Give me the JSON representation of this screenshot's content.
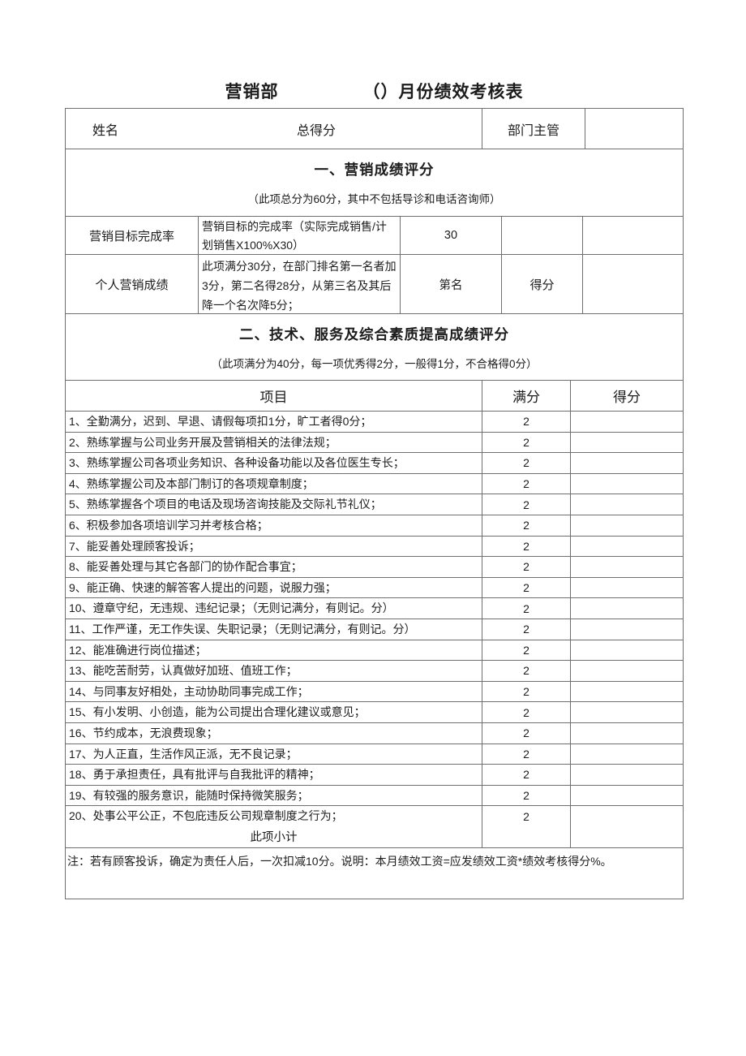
{
  "title": {
    "dept": "营销部",
    "main": "（）月份绩效考核表"
  },
  "header_row": {
    "name_label": "姓名",
    "total_label": "总得分",
    "supervisor_label": "部门主管",
    "supervisor_value": ""
  },
  "section1": {
    "heading": "一、营销成绩评分",
    "subtitle": "（此项总分为60分，其中不包括导诊和电话咨询师）",
    "rows": [
      {
        "label": "营销目标完成率",
        "desc": "营销目标的完成率（实际完成销售/计划销售X100%X30）",
        "value": "30",
        "col4": "",
        "col5": ""
      },
      {
        "label": "个人营销成绩",
        "desc": "此项满分30分，在部门排名第一名者加3分，第二名得28分，从第三名及其后降一个名次降5分；",
        "value": "第名",
        "col4": "得分",
        "col5": ""
      }
    ]
  },
  "section2": {
    "heading": "二、技术、服务及综合素质提高成绩评分",
    "subtitle": "（此项满分为40分，每一项优秀得2分，一般得1分，不合格得0分）",
    "columns": {
      "item": "项目",
      "max": "满分",
      "score": "得分"
    },
    "items": [
      {
        "text": "1、全勤满分，迟到、早退、请假每项扣1分，旷工者得0分；",
        "max": "2",
        "score": ""
      },
      {
        "text": "2、熟练掌握与公司业务开展及营销相关的法律法规；",
        "max": "2",
        "score": ""
      },
      {
        "text": "3、熟练掌握公司各项业务知识、各种设备功能以及各位医生专长；",
        "max": "2",
        "score": ""
      },
      {
        "text": "4、熟练掌握公司及本部门制订的各项规章制度；",
        "max": "2",
        "score": ""
      },
      {
        "text": "5、熟练掌握各个项目的电话及现场咨询技能及交际礼节礼仪；",
        "max": "2",
        "score": ""
      },
      {
        "text": "6、积极参加各项培训学习并考核合格；",
        "max": "2",
        "score": ""
      },
      {
        "text": "7、能妥善处理顾客投诉；",
        "max": "2",
        "score": ""
      },
      {
        "text": "8、能妥善处理与其它各部门的协作配合事宜；",
        "max": "2",
        "score": ""
      },
      {
        "text": "9、能正确、快速的解答客人提出的问题，说服力强；",
        "max": "2",
        "score": ""
      },
      {
        "text": "10、遵章守纪，无违规、违纪记录；（无则记满分，有则记。分）",
        "max": "2",
        "score": ""
      },
      {
        "text": "11、工作严谨，无工作失误、失职记录；（无则记满分，有则记。分）",
        "max": "2",
        "score": ""
      },
      {
        "text": "12、能准确进行岗位描述；",
        "max": "2",
        "score": ""
      },
      {
        "text": "13、能吃苦耐劳，认真做好加班、值班工作；",
        "max": "2",
        "score": ""
      },
      {
        "text": "14、与同事友好相处，主动协助同事完成工作；",
        "max": "2",
        "score": ""
      },
      {
        "text": "15、有小发明、小创造，能为公司提出合理化建议或意见；",
        "max": "2",
        "score": ""
      },
      {
        "text": "16、节约成本，无浪费现象；",
        "max": "2",
        "score": ""
      },
      {
        "text": "17、为人正直，生活作风正派，无不良记录；",
        "max": "2",
        "score": ""
      },
      {
        "text": "18、勇于承担责任，具有批评与自我批评的精神；",
        "max": "2",
        "score": ""
      },
      {
        "text": "19、有较强的服务意识，能随时保持微笑服务；",
        "max": "2",
        "score": ""
      },
      {
        "text": "20、处事公平公正，不包庇违反公司规章制度之行为；",
        "max": "2",
        "score": ""
      }
    ],
    "subtotal_label": "此项小计"
  },
  "note": "注：若有顾客投诉，确定为责任人后，一次扣减10分。说明：本月绩效工资=应发绩效工资*绩效考核得分%。",
  "colors": {
    "background": "#ffffff",
    "text": "#1c1c1c",
    "border": "#6f6f6f"
  }
}
